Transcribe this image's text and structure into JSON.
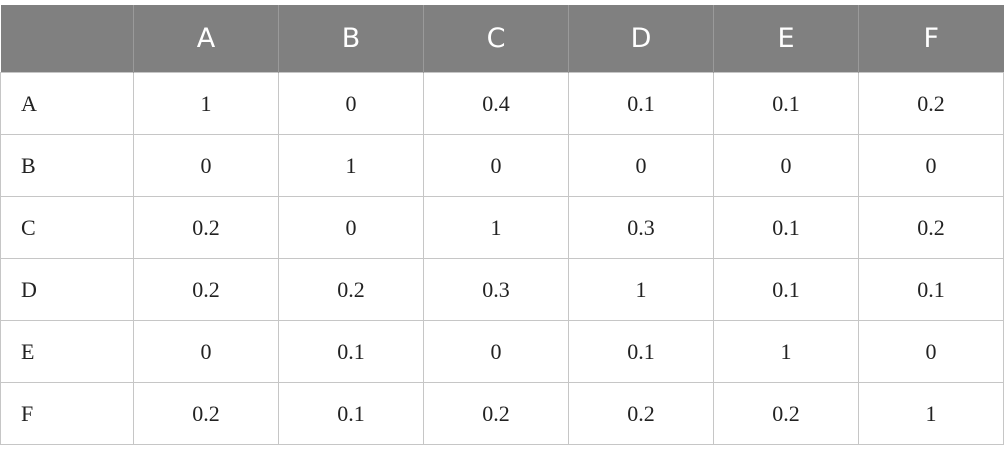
{
  "table": {
    "columns": [
      "A",
      "B",
      "C",
      "D",
      "E",
      "F"
    ],
    "rows": [
      {
        "label": "A",
        "cells": [
          "1",
          "0",
          "0.4",
          "0.1",
          "0.1",
          "0.2"
        ]
      },
      {
        "label": "B",
        "cells": [
          "0",
          "1",
          "0",
          "0",
          "0",
          "0"
        ]
      },
      {
        "label": "C",
        "cells": [
          "0.2",
          "0",
          "1",
          "0.3",
          "0.1",
          "0.2"
        ]
      },
      {
        "label": "D",
        "cells": [
          "0.2",
          "0.2",
          "0.3",
          "1",
          "0.1",
          "0.1"
        ]
      },
      {
        "label": "E",
        "cells": [
          "0",
          "0.1",
          "0",
          "0.1",
          "1",
          "0"
        ]
      },
      {
        "label": "F",
        "cells": [
          "0.2",
          "0.1",
          "0.2",
          "0.2",
          "0.2",
          "1"
        ]
      }
    ]
  }
}
